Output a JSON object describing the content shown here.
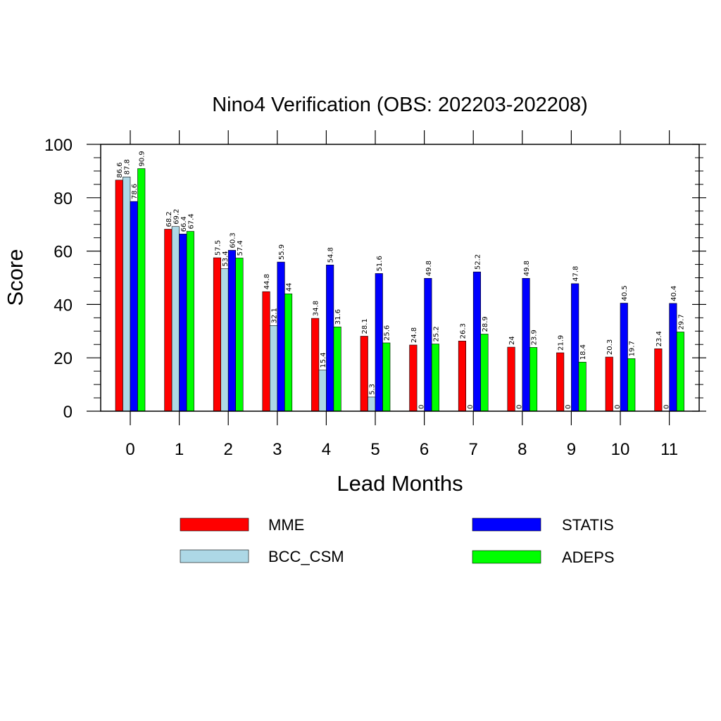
{
  "chart_data": {
    "type": "bar",
    "title": "Nino4 Verification (OBS: 202203-202208)",
    "xlabel": "Lead Months",
    "ylabel": "Score",
    "ylim": [
      0,
      100
    ],
    "yticks": [
      "0",
      "20",
      "40",
      "60",
      "80",
      "100"
    ],
    "categories": [
      "0",
      "1",
      "2",
      "3",
      "4",
      "5",
      "6",
      "7",
      "8",
      "9",
      "10",
      "11"
    ],
    "series": [
      {
        "name": "MME",
        "color": "#ff0000",
        "values": [
          86.6,
          68.2,
          57.5,
          44.8,
          34.8,
          28.1,
          24.8,
          26.3,
          24,
          21.9,
          20.3,
          23.4
        ],
        "labels": [
          "86.6",
          "68.2",
          "57.5",
          "44.8",
          "34.8",
          "28.1",
          "24.8",
          "26.3",
          "24",
          "21.9",
          "20.3",
          "23.4"
        ]
      },
      {
        "name": "BCC_CSM",
        "color": "#add8e6",
        "values": [
          87.8,
          69.2,
          53.4,
          32.1,
          15.4,
          5.3,
          0,
          0,
          0,
          0,
          0,
          0
        ],
        "labels": [
          "87.8",
          "69.2",
          "53.4",
          "32.1",
          "15.4",
          "5.3",
          "0",
          "0",
          "0",
          "0",
          "0",
          "0"
        ]
      },
      {
        "name": "STATIS",
        "color": "#0000ff",
        "values": [
          78.6,
          66.4,
          60.3,
          55.9,
          54.8,
          51.6,
          49.8,
          52.2,
          49.8,
          47.8,
          40.5,
          40.4
        ],
        "labels": [
          "78.6",
          "66.4",
          "60.3",
          "55.9",
          "54.8",
          "51.6",
          "49.8",
          "52.2",
          "49.8",
          "47.8",
          "40.5",
          "40.4"
        ]
      },
      {
        "name": "ADEPS",
        "color": "#00ff00",
        "values": [
          90.9,
          67.4,
          57.4,
          44,
          31.6,
          25.6,
          25.2,
          28.9,
          23.9,
          18.4,
          19.7,
          29.7
        ],
        "labels": [
          "90.9",
          "67.4",
          "57.4",
          "44",
          "31.6",
          "25.6",
          "25.2",
          "28.9",
          "23.9",
          "18.4",
          "19.7",
          "29.7"
        ]
      }
    ],
    "legend": {
      "placement": "below",
      "order": [
        "MME",
        "STATIS",
        "BCC_CSM",
        "ADEPS"
      ]
    },
    "grid": false
  }
}
